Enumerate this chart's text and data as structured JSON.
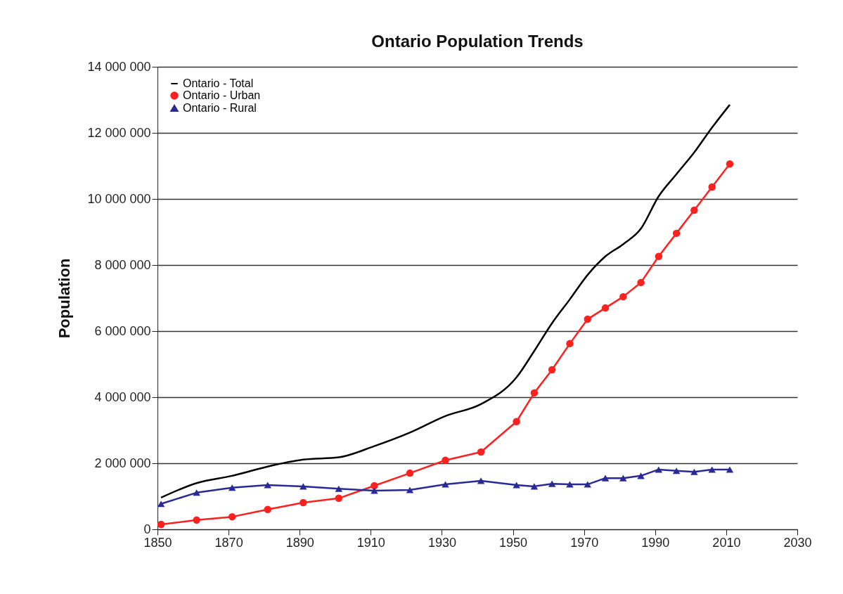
{
  "chart_data": {
    "type": "line",
    "title": "Ontario Population Trends",
    "ylabel": "Population",
    "x": [
      1851,
      1861,
      1871,
      1881,
      1891,
      1901,
      1911,
      1921,
      1931,
      1941,
      1951,
      1956,
      1961,
      1966,
      1971,
      1976,
      1981,
      1986,
      1991,
      1996,
      2001,
      2006,
      2011
    ],
    "series": [
      {
        "name": "Ontario - Total",
        "color": "#000000",
        "marker": "none",
        "values": [
          960000,
          1400000,
          1620000,
          1900000,
          2110000,
          2180000,
          2520000,
          2930000,
          3430000,
          3790000,
          4600000,
          5400000,
          6240000,
          6960000,
          7700000,
          8260000,
          8630000,
          9100000,
          10080000,
          10750000,
          11410000,
          12160000,
          12850000
        ]
      },
      {
        "name": "Ontario - Urban",
        "color": "#ff2020",
        "marker": "circle",
        "values": [
          150000,
          280000,
          380000,
          600000,
          810000,
          940000,
          1320000,
          1700000,
          2090000,
          2340000,
          3260000,
          4130000,
          4830000,
          5620000,
          6360000,
          6700000,
          7040000,
          7470000,
          8260000,
          8960000,
          9660000,
          10360000,
          11060000
        ]
      },
      {
        "name": "Ontario - Rural",
        "color": "#2a2a96",
        "marker": "triangle",
        "values": [
          770000,
          1110000,
          1260000,
          1340000,
          1300000,
          1230000,
          1170000,
          1190000,
          1360000,
          1470000,
          1340000,
          1300000,
          1380000,
          1360000,
          1360000,
          1550000,
          1550000,
          1620000,
          1810000,
          1770000,
          1740000,
          1810000,
          1810000
        ]
      }
    ],
    "xlim": [
      1850,
      2030
    ],
    "xticks": [
      1850,
      1870,
      1890,
      1910,
      1930,
      1950,
      1970,
      1990,
      2010,
      2030
    ],
    "ylim": [
      0,
      14000000
    ],
    "yticks": [
      0,
      {
        "value": 2000000,
        "label": "2 000 000"
      },
      {
        "value": 4000000,
        "label": "4 000 000"
      },
      {
        "value": 6000000,
        "label": "6 000 000"
      },
      {
        "value": 8000000,
        "label": "8 000 000"
      },
      {
        "value": 10000000,
        "label": "10 000 000"
      },
      {
        "value": 12000000,
        "label": "12 000 000"
      },
      {
        "value": 14000000,
        "label": "14 000 000"
      }
    ],
    "grid": "y",
    "legend": "top left",
    "line_style": "solid"
  }
}
